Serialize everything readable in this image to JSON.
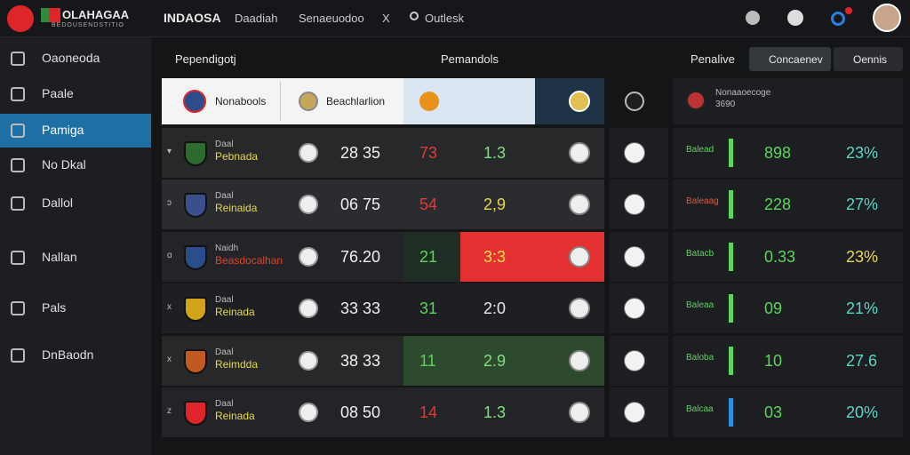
{
  "brand": {
    "name": "OLAHAGAA",
    "tagline": "BEDOUSENDSTITIO"
  },
  "topbar": {
    "title": "INDAOSA",
    "links": [
      "Daadiah",
      "Senaeuodoo",
      "X"
    ],
    "search": "Outlesk"
  },
  "sidebar": {
    "items": [
      "Oaoneoda",
      "Paale",
      "Pamiga",
      "No Dkal",
      "Dallol",
      "Nallan",
      "Pals",
      "DnBaodn"
    ],
    "active": 2
  },
  "header": {
    "left": "Pependigotj",
    "center": "Pemandols",
    "right": "Penalive",
    "buttons": [
      "Concaenev",
      "Oennis"
    ]
  },
  "featured": {
    "team": "Nonabools",
    "player": "Beachlarlion",
    "summary_title": "Nonaaoecoge",
    "summary_code": "3690"
  },
  "rows": [
    {
      "marker": "▾",
      "tag": "Daal",
      "team": "Pebnada",
      "score": "28 35",
      "home": "73",
      "draw": "1.3",
      "label": "Balead",
      "value": "898",
      "share": "23%"
    },
    {
      "marker": "ɔ",
      "tag": "Daal",
      "team": "Reinaida",
      "score": "06 75",
      "home": "54",
      "draw": "2,9",
      "label": "Baleaag",
      "value": "228",
      "share": "27%"
    },
    {
      "marker": "ɑ",
      "tag": "Naidh",
      "team": "Beasdocalhan",
      "score": "76.20",
      "home": "21",
      "draw": "3:3",
      "label": "Batacb",
      "value": "0.33",
      "share": "23%"
    },
    {
      "marker": "x",
      "tag": "Daal",
      "team": "Reinada",
      "score": "33 33",
      "home": "31",
      "draw": "2:0",
      "label": "Baleaa",
      "value": "09",
      "share": "21%"
    },
    {
      "marker": "x",
      "tag": "Daal",
      "team": "Reimdda",
      "score": "38 33",
      "home": "11",
      "draw": "2.9",
      "label": "Baloba",
      "value": "10",
      "share": "27.6"
    },
    {
      "marker": "z",
      "tag": "Daal",
      "team": "Reinada",
      "score": "08 50",
      "home": "14",
      "draw": "1.3",
      "label": "Balcaa",
      "value": "03",
      "share": "20%"
    }
  ]
}
